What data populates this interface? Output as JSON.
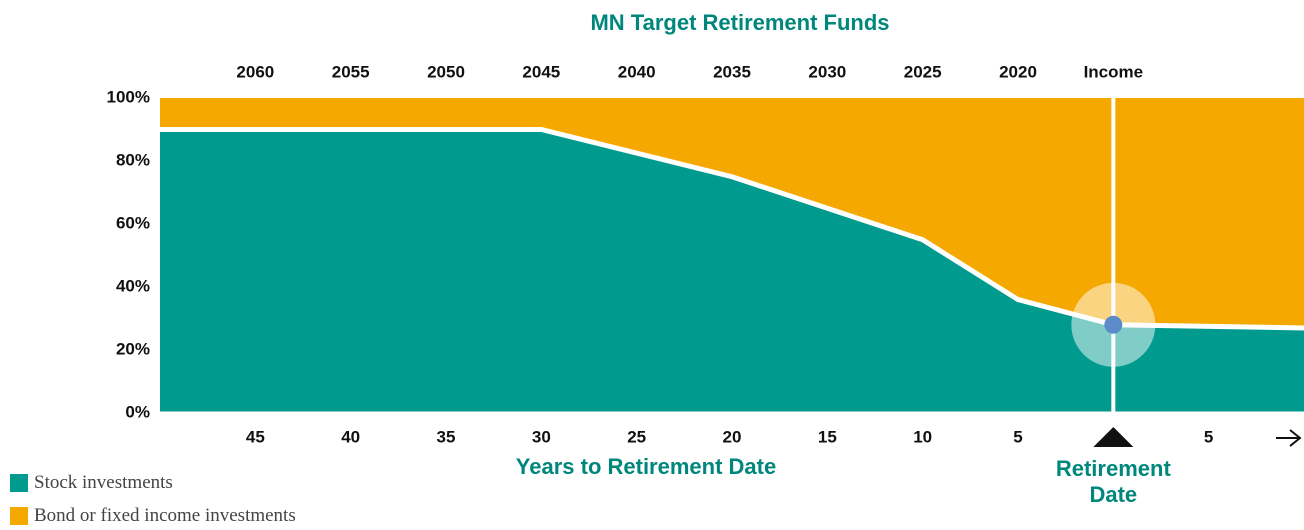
{
  "chart_data": {
    "type": "stacked_area",
    "title": "MN Target Retirement Funds",
    "x_label": "Years to Retirement Date",
    "x": [
      50,
      30,
      20,
      10,
      5,
      0,
      -10
    ],
    "xlim": [
      50,
      -10
    ],
    "xticks": [
      45,
      40,
      35,
      30,
      25,
      20,
      15,
      10,
      5,
      {
        "value": -5,
        "label": "5"
      }
    ],
    "top_ticks": [
      {
        "value": 45,
        "label": "2060"
      },
      {
        "value": 40,
        "label": "2055"
      },
      {
        "value": 35,
        "label": "2050"
      },
      {
        "value": 30,
        "label": "2045"
      },
      {
        "value": 25,
        "label": "2040"
      },
      {
        "value": 20,
        "label": "2035"
      },
      {
        "value": 15,
        "label": "2030"
      },
      {
        "value": 10,
        "label": "2025"
      },
      {
        "value": 5,
        "label": "2020"
      },
      {
        "value": 0,
        "label": "Income"
      }
    ],
    "ylim": [
      0,
      100
    ],
    "yticks": [
      {
        "value": 0,
        "label": "0%"
      },
      {
        "value": 20,
        "label": "20%"
      },
      {
        "value": 40,
        "label": "40%"
      },
      {
        "value": 60,
        "label": "60%"
      },
      {
        "value": 80,
        "label": "80%"
      },
      {
        "value": 100,
        "label": "100%"
      }
    ],
    "series": [
      {
        "name": "Stock investments",
        "color": "#009a8f",
        "values": [
          90,
          90,
          75,
          55,
          36,
          28,
          27
        ]
      },
      {
        "name": "Bond or fixed income investments",
        "color": "#f5a800",
        "values": [
          10,
          10,
          25,
          45,
          64,
          72,
          73
        ]
      }
    ],
    "marker": {
      "x": 0,
      "label": "Retirement Date"
    },
    "legend": "bottom-left",
    "grid": false
  }
}
